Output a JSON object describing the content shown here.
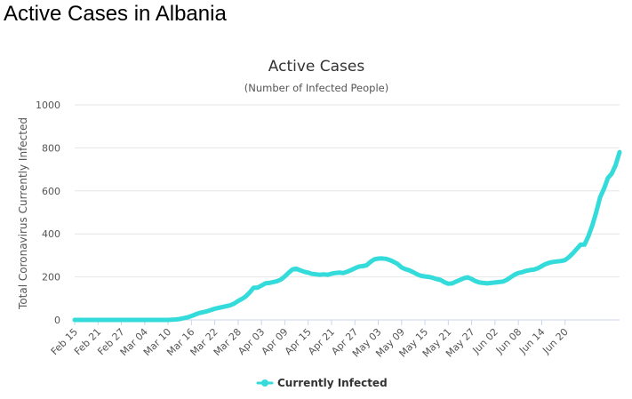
{
  "page": {
    "heading": "Active Cases in Albania"
  },
  "colors": {
    "series": "#33dbdb",
    "grid": "#e6e6e6",
    "axis": "#ccd6eb"
  },
  "chart_data": {
    "type": "line",
    "title": "Active Cases",
    "subtitle": "(Number of Infected People)",
    "ylabel": "Total Coronavirus Currently Infected",
    "xlabel": "",
    "ylim": [
      0,
      1000
    ],
    "y_ticks": [
      0,
      200,
      400,
      600,
      800,
      1000
    ],
    "grid": true,
    "legend_position": "bottom",
    "x_tick_labels": [
      "Feb 15",
      "Feb 21",
      "Feb 27",
      "Mar 04",
      "Mar 10",
      "Mar 16",
      "Mar 22",
      "Mar 28",
      "Apr 03",
      "Apr 09",
      "Apr 15",
      "Apr 21",
      "Apr 27",
      "May 03",
      "May 09",
      "May 15",
      "May 21",
      "May 27",
      "Jun 02",
      "Jun 08",
      "Jun 14",
      "Jun 20"
    ],
    "x_tick_step_days": 6,
    "series": [
      {
        "name": "Currently Infected",
        "values": [
          0,
          0,
          0,
          0,
          0,
          0,
          0,
          0,
          0,
          0,
          0,
          0,
          0,
          0,
          0,
          0,
          0,
          0,
          0,
          0,
          0,
          0,
          0,
          0,
          0,
          1,
          2,
          4,
          8,
          12,
          18,
          25,
          32,
          36,
          40,
          46,
          52,
          56,
          60,
          64,
          68,
          76,
          88,
          98,
          110,
          128,
          150,
          150,
          160,
          170,
          172,
          176,
          180,
          188,
          202,
          220,
          235,
          238,
          230,
          224,
          220,
          214,
          212,
          210,
          212,
          210,
          215,
          218,
          220,
          218,
          224,
          232,
          240,
          248,
          250,
          254,
          270,
          282,
          285,
          286,
          284,
          278,
          270,
          260,
          244,
          236,
          230,
          222,
          212,
          205,
          202,
          200,
          196,
          190,
          186,
          175,
          168,
          170,
          178,
          186,
          194,
          198,
          190,
          180,
          174,
          172,
          170,
          172,
          174,
          176,
          178,
          186,
          198,
          210,
          218,
          222,
          228,
          232,
          234,
          240,
          250,
          260,
          266,
          270,
          272,
          274,
          278,
          292,
          310,
          330,
          350,
          350,
          390,
          440,
          500,
          570,
          610,
          660,
          680,
          720,
          780
        ]
      }
    ]
  }
}
